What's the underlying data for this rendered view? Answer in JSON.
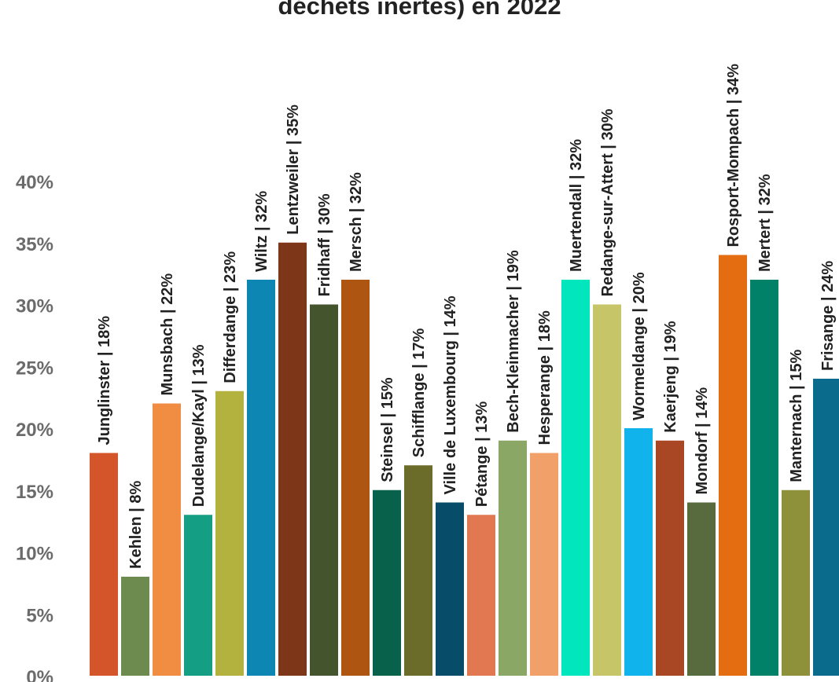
{
  "chart_data": {
    "type": "bar",
    "title": "déchets inertes) en 2022",
    "categories": [
      "Junglinster",
      "Kehlen",
      "Munsbach",
      "Dudelange/Kayl",
      "Differdange",
      "Wiltz",
      "Lentzweiler",
      "Fridhaff",
      "Mersch",
      "Steinsel",
      "Schifflange",
      "Ville de Luxembourg",
      "Pétange",
      "Bech-Kleinmacher",
      "Hesperange",
      "Muertendall",
      "Redange-sur-Attert",
      "Wormeldange",
      "Kaerjeng",
      "Mondorf",
      "Rosport-Mompach",
      "Mertert",
      "Manternach",
      "Frisange"
    ],
    "values": [
      18,
      8,
      22,
      13,
      23,
      32,
      35,
      30,
      32,
      15,
      17,
      14,
      13,
      19,
      18,
      32,
      30,
      20,
      19,
      14,
      34,
      32,
      15,
      24
    ],
    "labels": [
      "Junglinster | 18%",
      "Kehlen | 8%",
      "Munsbach | 22%",
      "Dudelange/Kayl | 13%",
      "Differdange | 23%",
      "Wiltz | 32%",
      "Lentzweiler | 35%",
      "Fridhaff | 30%",
      "Mersch | 32%",
      "Steinsel | 15%",
      "Schifflange | 17%",
      "Ville de Luxembourg | 14%",
      "Pétange | 13%",
      "Bech-Kleinmacher | 19%",
      "Hesperange | 18%",
      "Muertendall | 32%",
      "Redange-sur-Attert | 30%",
      "Wormeldange | 20%",
      "Kaerjeng | 19%",
      "Mondorf | 14%",
      "Rosport-Mompach | 34%",
      "Mertert | 32%",
      "Manternach | 15%",
      "Frisange | 24%"
    ],
    "colors": [
      "#D4552A",
      "#6D8A4F",
      "#F08D43",
      "#149E84",
      "#B3B23F",
      "#0E86B4",
      "#7E3618",
      "#44552D",
      "#AE5511",
      "#07614B",
      "#6B6C29",
      "#074D69",
      "#E27852",
      "#8BA765",
      "#F2A06A",
      "#02E6BE",
      "#C6C568",
      "#10B3EC",
      "#A94624",
      "#586B3E",
      "#E46D12",
      "#018168",
      "#8F913A",
      "#0B6B8D"
    ],
    "yticks": [
      "0%",
      "5%",
      "10%",
      "15%",
      "20%",
      "25%",
      "30%",
      "35%",
      "40%"
    ],
    "ylim": [
      0,
      40
    ],
    "grid": false,
    "legend": false
  }
}
